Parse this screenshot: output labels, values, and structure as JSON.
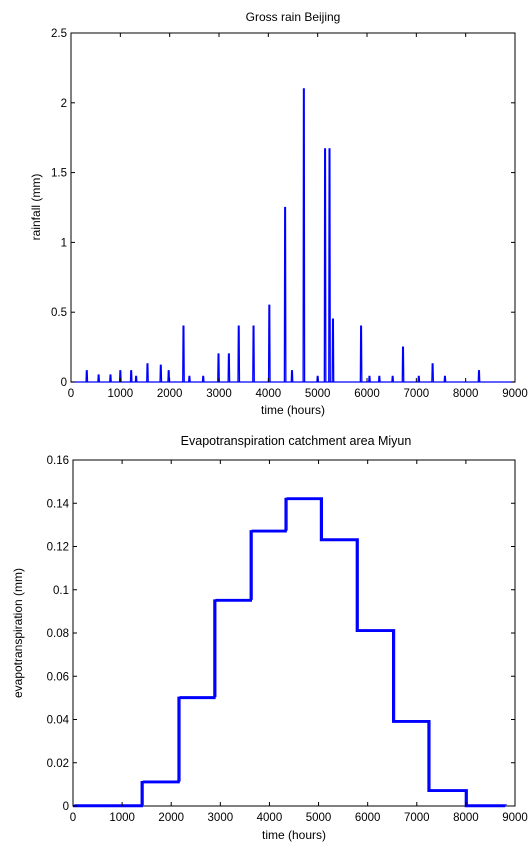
{
  "chart_data": [
    {
      "type": "line",
      "title": "Gross rain Beijing",
      "xlabel": "time (hours)",
      "ylabel": "rainfall (mm)",
      "xlim": [
        0,
        9000
      ],
      "ylim": [
        0,
        2.5
      ],
      "xticks": [
        0,
        1000,
        2000,
        3000,
        4000,
        5000,
        6000,
        7000,
        8000,
        9000
      ],
      "yticks": [
        0,
        0.5,
        1,
        1.5,
        2,
        2.5
      ],
      "ytick_labels": [
        "0",
        "0.5",
        "1",
        "1.5",
        "2",
        "2.5"
      ],
      "color": "#0000ff",
      "grid": false,
      "pulses": [
        {
          "x": 320,
          "y": 0.08
        },
        {
          "x": 560,
          "y": 0.05
        },
        {
          "x": 800,
          "y": 0.05
        },
        {
          "x": 1000,
          "y": 0.08
        },
        {
          "x": 1220,
          "y": 0.08
        },
        {
          "x": 1320,
          "y": 0.04
        },
        {
          "x": 1550,
          "y": 0.13
        },
        {
          "x": 1820,
          "y": 0.12
        },
        {
          "x": 1980,
          "y": 0.08
        },
        {
          "x": 2280,
          "y": 0.4
        },
        {
          "x": 2400,
          "y": 0.04
        },
        {
          "x": 2680,
          "y": 0.04
        },
        {
          "x": 2990,
          "y": 0.2
        },
        {
          "x": 3200,
          "y": 0.2
        },
        {
          "x": 3400,
          "y": 0.4
        },
        {
          "x": 3700,
          "y": 0.4
        },
        {
          "x": 4020,
          "y": 0.55
        },
        {
          "x": 4340,
          "y": 1.25
        },
        {
          "x": 4480,
          "y": 0.08
        },
        {
          "x": 4720,
          "y": 2.1
        },
        {
          "x": 5000,
          "y": 0.04
        },
        {
          "x": 5150,
          "y": 1.67
        },
        {
          "x": 5240,
          "y": 1.67
        },
        {
          "x": 5310,
          "y": 0.45
        },
        {
          "x": 5880,
          "y": 0.4
        },
        {
          "x": 6050,
          "y": 0.04
        },
        {
          "x": 6250,
          "y": 0.04
        },
        {
          "x": 6520,
          "y": 0.04
        },
        {
          "x": 6730,
          "y": 0.25
        },
        {
          "x": 7050,
          "y": 0.04
        },
        {
          "x": 7330,
          "y": 0.13
        },
        {
          "x": 7580,
          "y": 0.04
        },
        {
          "x": 8270,
          "y": 0.08
        }
      ]
    },
    {
      "type": "line",
      "title": "Evapotranspiration catchment area Miyun",
      "xlabel": "time (hours)",
      "ylabel": "evapotranspiration (mm)",
      "xlim": [
        0,
        9000
      ],
      "ylim": [
        0,
        0.16
      ],
      "xticks": [
        0,
        1000,
        2000,
        3000,
        4000,
        5000,
        6000,
        7000,
        8000,
        9000
      ],
      "yticks": [
        0,
        0.02,
        0.04,
        0.06,
        0.08,
        0.1,
        0.12,
        0.14,
        0.16
      ],
      "ytick_labels": [
        "0",
        "0.02",
        "0.04",
        "0.06",
        "0.08",
        "0.1",
        "0.12",
        "0.14",
        "0.16"
      ],
      "color": "#0000ff",
      "grid": false,
      "x": [
        0,
        1400,
        1400,
        2150,
        2150,
        2880,
        2880,
        3620,
        3620,
        4330,
        4330,
        5050,
        5050,
        5780,
        5780,
        6520,
        6520,
        7240,
        7240,
        8000,
        8000,
        8800
      ],
      "y": [
        0,
        0,
        0.011,
        0.011,
        0.05,
        0.05,
        0.095,
        0.095,
        0.127,
        0.127,
        0.142,
        0.142,
        0.123,
        0.123,
        0.081,
        0.081,
        0.039,
        0.039,
        0.007,
        0.007,
        0,
        0
      ]
    }
  ]
}
